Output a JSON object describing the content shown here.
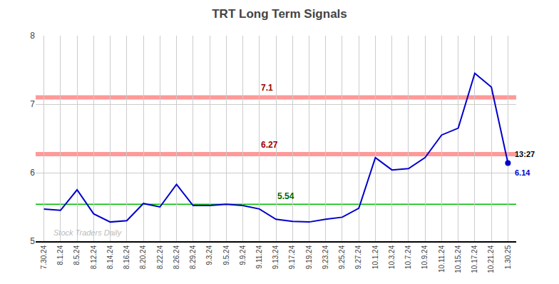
{
  "chart_data": {
    "type": "line",
    "title": "TRT Long Term Signals",
    "categories": [
      "7.30.24",
      "8.1.24",
      "8.5.24",
      "8.12.24",
      "8.14.24",
      "8.16.24",
      "8.20.24",
      "8.22.24",
      "8.26.24",
      "8.29.24",
      "9.3.24",
      "9.5.24",
      "9.9.24",
      "9.11.24",
      "9.13.24",
      "9.17.24",
      "9.19.24",
      "9.23.24",
      "9.25.24",
      "9.27.24",
      "10.1.24",
      "10.3.24",
      "10.7.24",
      "10.9.24",
      "10.11.24",
      "10.15.24",
      "10.17.24",
      "10.21.24",
      "1.30.25"
    ],
    "values": [
      5.47,
      5.45,
      5.75,
      5.4,
      5.28,
      5.3,
      5.55,
      5.5,
      5.83,
      5.52,
      5.52,
      5.54,
      5.52,
      5.47,
      5.32,
      5.29,
      5.28,
      5.32,
      5.35,
      5.48,
      6.22,
      6.04,
      6.06,
      6.22,
      6.55,
      6.65,
      7.45,
      7.25,
      6.14
    ],
    "color": "#0000cc",
    "ylim": [
      5.0,
      8.0
    ],
    "yticks": [
      5,
      6,
      7,
      8
    ],
    "grid": true,
    "grid_color": "#cccccc",
    "reference_lines": [
      {
        "value": 7.1,
        "label": "7.1",
        "color": "#ff9999",
        "label_color": "#990000"
      },
      {
        "value": 6.27,
        "label": "6.27",
        "color": "#ff9999",
        "label_color": "#990000"
      },
      {
        "value": 5.54,
        "label": "5.54",
        "color": "#00bb00",
        "label_color": "#006600"
      }
    ],
    "annotations": [
      {
        "text": "13:27",
        "category": "1.30.25",
        "position": "above",
        "color": "#000000"
      },
      {
        "text": "6.14",
        "category": "1.30.25",
        "position": "below",
        "color": "#0000cc"
      },
      {
        "text": "Stock Traders Daily",
        "position": "watermark",
        "color": "#bbbbbb"
      }
    ]
  }
}
